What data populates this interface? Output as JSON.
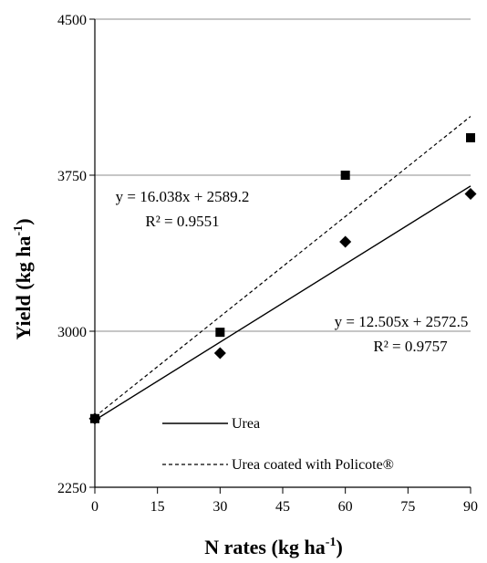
{
  "chart_data": {
    "type": "scatter",
    "xlabel": "N rates (kg ha",
    "xlabel_sup": "-1",
    "xlabel_end": ")",
    "ylabel": "Yield (kg ha",
    "ylabel_sup": "-1",
    "ylabel_end": ")",
    "xlim": [
      0,
      90
    ],
    "ylim": [
      2250,
      4500
    ],
    "xticks": [
      "0",
      "15",
      "30",
      "45",
      "60",
      "75",
      "90"
    ],
    "yticks": [
      "2250",
      "3000",
      "3750",
      "4500"
    ],
    "grid": "horizontal",
    "legend_position": "lower-right",
    "series": [
      {
        "name": "Urea",
        "marker": "diamond",
        "line": "solid",
        "points": [
          [
            0,
            2580
          ],
          [
            30,
            2895
          ],
          [
            60,
            3430
          ],
          [
            90,
            3660
          ]
        ],
        "trendline": {
          "slope": 12.505,
          "intercept": 2572.5
        },
        "equation": "y = 12.505x + 2572.5",
        "r2": "R² = 0.9757"
      },
      {
        "name": "Urea coated with Policote®",
        "marker": "square",
        "line": "dashed",
        "points": [
          [
            0,
            2580
          ],
          [
            30,
            2995
          ],
          [
            60,
            3750
          ],
          [
            90,
            3930
          ]
        ],
        "trendline": {
          "slope": 16.038,
          "intercept": 2589.2
        },
        "equation": "y = 16.038x + 2589.2",
        "r2": "R² = 0.9551"
      }
    ]
  }
}
